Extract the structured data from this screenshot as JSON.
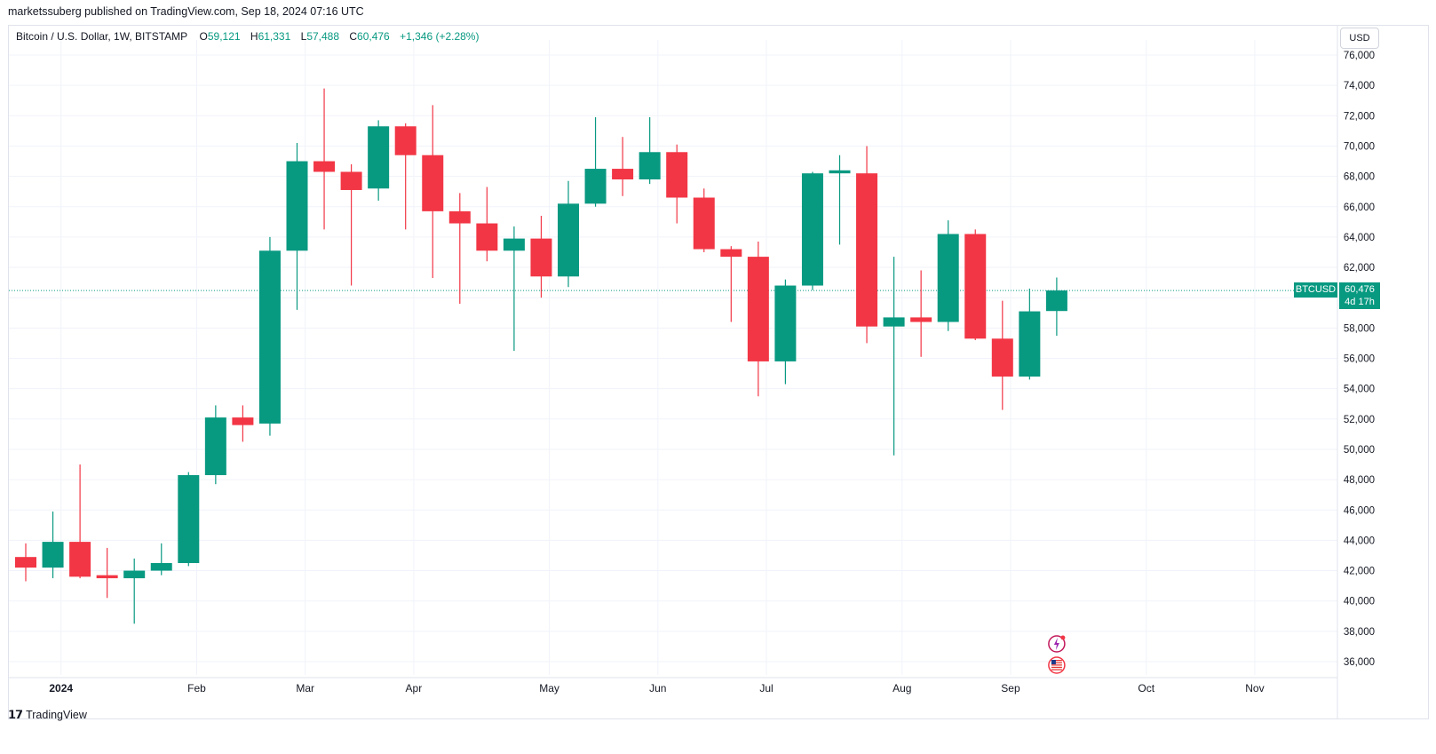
{
  "header": {
    "publish_line": "marketssuberg published on TradingView.com, Sep 18, 2024 07:16 UTC"
  },
  "legend": {
    "symbol_line": "Bitcoin / U.S. Dollar, 1W, BITSTAMP",
    "open_label": "O",
    "open_value": "59,121",
    "high_label": "H",
    "high_value": "61,331",
    "low_label": "L",
    "low_value": "57,488",
    "close_label": "C",
    "close_value": "60,476",
    "change": "+1,346 (+2.28%)"
  },
  "currency_button": "USD",
  "last_price": {
    "symbol": "BTCUSD",
    "price": "60,476",
    "countdown": "4d 17h"
  },
  "footer": {
    "logo_text": "TradingView"
  },
  "colors": {
    "up": "#089981",
    "down": "#f23645",
    "grid": "#f0f3fa",
    "axis_text": "#131722"
  },
  "chart_data": {
    "type": "candlestick",
    "title": "Bitcoin / U.S. Dollar, 1W, BITSTAMP",
    "y_axis": {
      "ticks": [
        36000,
        38000,
        40000,
        42000,
        44000,
        46000,
        48000,
        50000,
        52000,
        54000,
        56000,
        58000,
        60000,
        62000,
        64000,
        66000,
        68000,
        70000,
        72000,
        74000,
        76000
      ],
      "tick_labels": [
        "36,000",
        "38,000",
        "40,000",
        "42,000",
        "44,000",
        "46,000",
        "48,000",
        "50,000",
        "52,000",
        "54,000",
        "56,000",
        "58,000",
        "60,000",
        "62,000",
        "64,000",
        "66,000",
        "68,000",
        "70,000",
        "72,000",
        "74,000",
        "76,000"
      ],
      "range": [
        34800,
        76800
      ],
      "side": "right"
    },
    "x_axis": {
      "labels": [
        {
          "text": "2024",
          "week_index": 1.3,
          "bold": true
        },
        {
          "text": "Feb",
          "week_index": 6.3
        },
        {
          "text": "Mar",
          "week_index": 10.3
        },
        {
          "text": "Apr",
          "week_index": 14.3
        },
        {
          "text": "May",
          "week_index": 19.3
        },
        {
          "text": "Jun",
          "week_index": 23.3
        },
        {
          "text": "Jul",
          "week_index": 27.3
        },
        {
          "text": "Aug",
          "week_index": 32.3
        },
        {
          "text": "Sep",
          "week_index": 36.3
        },
        {
          "text": "Oct",
          "week_index": 41.3
        },
        {
          "text": "Nov",
          "week_index": 45.3
        }
      ]
    },
    "grid": true,
    "candles": [
      {
        "o": 42900,
        "h": 43800,
        "l": 41300,
        "c": 42200
      },
      {
        "o": 42200,
        "h": 45900,
        "l": 41500,
        "c": 43900
      },
      {
        "o": 43900,
        "h": 49000,
        "l": 41500,
        "c": 41600
      },
      {
        "o": 41700,
        "h": 43500,
        "l": 40200,
        "c": 41500
      },
      {
        "o": 41500,
        "h": 42800,
        "l": 38500,
        "c": 42000
      },
      {
        "o": 42000,
        "h": 43800,
        "l": 41700,
        "c": 42500
      },
      {
        "o": 42500,
        "h": 48500,
        "l": 42300,
        "c": 48300
      },
      {
        "o": 48300,
        "h": 52900,
        "l": 47700,
        "c": 52100
      },
      {
        "o": 52100,
        "h": 52900,
        "l": 50500,
        "c": 51600
      },
      {
        "o": 51700,
        "h": 64000,
        "l": 50900,
        "c": 63100
      },
      {
        "o": 63100,
        "h": 70200,
        "l": 59200,
        "c": 69000
      },
      {
        "o": 69000,
        "h": 73800,
        "l": 64500,
        "c": 68300
      },
      {
        "o": 68300,
        "h": 68800,
        "l": 60800,
        "c": 67100
      },
      {
        "o": 67200,
        "h": 71700,
        "l": 66400,
        "c": 71300
      },
      {
        "o": 71300,
        "h": 71500,
        "l": 64500,
        "c": 69400
      },
      {
        "o": 69400,
        "h": 72700,
        "l": 61300,
        "c": 65700
      },
      {
        "o": 65700,
        "h": 66900,
        "l": 59600,
        "c": 64900
      },
      {
        "o": 64900,
        "h": 67300,
        "l": 62400,
        "c": 63100
      },
      {
        "o": 63100,
        "h": 64700,
        "l": 56500,
        "c": 63900
      },
      {
        "o": 63900,
        "h": 65400,
        "l": 60000,
        "c": 61400
      },
      {
        "o": 61400,
        "h": 67700,
        "l": 60700,
        "c": 66200
      },
      {
        "o": 66200,
        "h": 71900,
        "l": 66000,
        "c": 68500
      },
      {
        "o": 68500,
        "h": 70600,
        "l": 66700,
        "c": 67800
      },
      {
        "o": 67800,
        "h": 71900,
        "l": 67500,
        "c": 69600
      },
      {
        "o": 69600,
        "h": 70100,
        "l": 64900,
        "c": 66600
      },
      {
        "o": 66600,
        "h": 67200,
        "l": 63000,
        "c": 63200
      },
      {
        "o": 63200,
        "h": 63400,
        "l": 58400,
        "c": 62700
      },
      {
        "o": 62700,
        "h": 63700,
        "l": 53500,
        "c": 55800
      },
      {
        "o": 55800,
        "h": 61200,
        "l": 54300,
        "c": 60800
      },
      {
        "o": 60800,
        "h": 68300,
        "l": 60500,
        "c": 68200
      },
      {
        "o": 68200,
        "h": 69400,
        "l": 63500,
        "c": 68400
      },
      {
        "o": 68200,
        "h": 70000,
        "l": 57000,
        "c": 58100
      },
      {
        "o": 58100,
        "h": 62700,
        "l": 49600,
        "c": 58700
      },
      {
        "o": 58700,
        "h": 61800,
        "l": 56100,
        "c": 58400
      },
      {
        "o": 58400,
        "h": 65100,
        "l": 57800,
        "c": 64200
      },
      {
        "o": 64200,
        "h": 64500,
        "l": 57200,
        "c": 57300
      },
      {
        "o": 57300,
        "h": 59800,
        "l": 52600,
        "c": 54800
      },
      {
        "o": 54800,
        "h": 60600,
        "l": 54600,
        "c": 59100
      },
      {
        "o": 59121,
        "h": 61331,
        "l": 57488,
        "c": 60476
      }
    ],
    "last_price_line": 60476,
    "markers": [
      {
        "icon": "lightning-icon",
        "week_index": 38
      },
      {
        "icon": "us-flag-icon",
        "week_index": 38
      }
    ]
  }
}
